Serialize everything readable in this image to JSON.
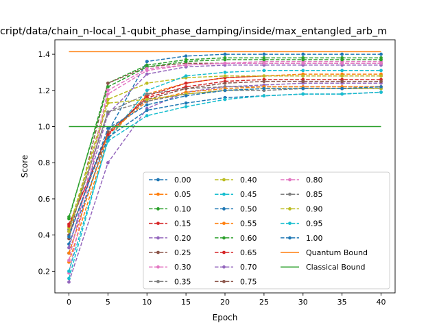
{
  "chart_data": {
    "type": "line",
    "title": "cript/data/chain_n-local_1-qubit_phase_damping/inside/max_entangled_arb_m",
    "xlabel": "Epoch",
    "ylabel": "Score",
    "xlim": [
      -1.8,
      41.8
    ],
    "ylim": [
      0.08,
      1.48
    ],
    "xticks": [
      0,
      5,
      10,
      15,
      20,
      25,
      30,
      35,
      40
    ],
    "yticks": [
      0.2,
      0.4,
      0.6,
      0.8,
      1.0,
      1.2,
      1.4
    ],
    "xtick_labels": [
      "0",
      "5",
      "10",
      "15",
      "20",
      "25",
      "30",
      "35",
      "40"
    ],
    "ytick_labels": [
      "0.2",
      "0.4",
      "0.6",
      "0.8",
      "1.0",
      "1.2",
      "1.4"
    ],
    "grid": false,
    "legend_position": "lower-right",
    "legend_columns": 3,
    "x": [
      0,
      5,
      10,
      15,
      20,
      25,
      30,
      35,
      40
    ],
    "series": [
      {
        "name": "0.00",
        "color": "#1f77b4",
        "style": "dashed-dot",
        "values": [
          0.3,
          0.97,
          1.36,
          1.39,
          1.4,
          1.4,
          1.4,
          1.4,
          1.4
        ]
      },
      {
        "name": "0.05",
        "color": "#ff7f0e",
        "style": "dashed-dot",
        "values": [
          0.25,
          0.93,
          1.18,
          1.24,
          1.27,
          1.28,
          1.29,
          1.29,
          1.29
        ]
      },
      {
        "name": "0.10",
        "color": "#2ca02c",
        "style": "dashed-dot",
        "values": [
          0.49,
          1.24,
          1.34,
          1.37,
          1.38,
          1.38,
          1.38,
          1.38,
          1.38
        ]
      },
      {
        "name": "0.15",
        "color": "#d62728",
        "style": "dashed-dot",
        "values": [
          0.46,
          0.95,
          1.17,
          1.24,
          1.27,
          1.28,
          1.28,
          1.28,
          1.28
        ]
      },
      {
        "name": "0.20",
        "color": "#9467bd",
        "style": "dashed-dot",
        "values": [
          0.14,
          0.8,
          1.1,
          1.19,
          1.22,
          1.23,
          1.24,
          1.24,
          1.24
        ]
      },
      {
        "name": "0.25",
        "color": "#8c564b",
        "style": "dashed-dot",
        "values": [
          0.38,
          1.24,
          1.33,
          1.35,
          1.35,
          1.35,
          1.35,
          1.35,
          1.35
        ]
      },
      {
        "name": "0.30",
        "color": "#e377c2",
        "style": "dashed-dot",
        "values": [
          0.19,
          1.18,
          1.31,
          1.34,
          1.35,
          1.36,
          1.36,
          1.36,
          1.36
        ]
      },
      {
        "name": "0.35",
        "color": "#7f7f7f",
        "style": "dashed-dot",
        "values": [
          0.43,
          1.08,
          1.18,
          1.21,
          1.22,
          1.22,
          1.22,
          1.22,
          1.22
        ]
      },
      {
        "name": "0.40",
        "color": "#bcbd22",
        "style": "dashed-dot",
        "values": [
          0.44,
          1.15,
          1.24,
          1.27,
          1.28,
          1.28,
          1.28,
          1.28,
          1.28
        ]
      },
      {
        "name": "0.45",
        "color": "#17becf",
        "style": "dashed-dot",
        "values": [
          0.16,
          0.93,
          1.2,
          1.28,
          1.3,
          1.31,
          1.31,
          1.31,
          1.31
        ]
      },
      {
        "name": "0.50",
        "color": "#1f77b4",
        "style": "dashed-dot",
        "values": [
          0.35,
          0.94,
          1.09,
          1.13,
          1.16,
          1.17,
          1.18,
          1.18,
          1.19
        ]
      },
      {
        "name": "0.55",
        "color": "#ff7f0e",
        "style": "dashed-dot",
        "values": [
          0.3,
          0.96,
          1.14,
          1.19,
          1.21,
          1.22,
          1.22,
          1.22,
          1.22
        ]
      },
      {
        "name": "0.60",
        "color": "#2ca02c",
        "style": "dashed-dot",
        "values": [
          0.5,
          1.22,
          1.33,
          1.36,
          1.37,
          1.37,
          1.37,
          1.37,
          1.37
        ]
      },
      {
        "name": "0.65",
        "color": "#d62728",
        "style": "dashed-dot",
        "values": [
          0.45,
          0.96,
          1.16,
          1.22,
          1.25,
          1.26,
          1.26,
          1.26,
          1.26
        ]
      },
      {
        "name": "0.70",
        "color": "#9467bd",
        "style": "dashed-dot",
        "values": [
          0.33,
          1.07,
          1.29,
          1.33,
          1.34,
          1.34,
          1.34,
          1.34,
          1.34
        ]
      },
      {
        "name": "0.75",
        "color": "#8c564b",
        "style": "dashed-dot",
        "values": [
          0.4,
          0.97,
          1.15,
          1.21,
          1.24,
          1.25,
          1.25,
          1.25,
          1.25
        ]
      },
      {
        "name": "0.80",
        "color": "#e377c2",
        "style": "dashed-dot",
        "values": [
          0.26,
          1.2,
          1.32,
          1.34,
          1.35,
          1.35,
          1.35,
          1.35,
          1.35
        ]
      },
      {
        "name": "0.85",
        "color": "#7f7f7f",
        "style": "dashed-dot",
        "values": [
          0.42,
          1.08,
          1.14,
          1.18,
          1.2,
          1.2,
          1.21,
          1.21,
          1.21
        ]
      },
      {
        "name": "0.90",
        "color": "#bcbd22",
        "style": "dashed-dot",
        "values": [
          0.42,
          1.13,
          1.15,
          1.18,
          1.2,
          1.21,
          1.21,
          1.21,
          1.21
        ]
      },
      {
        "name": "0.95",
        "color": "#17becf",
        "style": "dashed-dot",
        "values": [
          0.2,
          0.92,
          1.06,
          1.11,
          1.15,
          1.17,
          1.18,
          1.18,
          1.19
        ]
      },
      {
        "name": "1.00",
        "color": "#1f77b4",
        "style": "dashed-dot",
        "values": [
          0.39,
          0.99,
          1.12,
          1.17,
          1.2,
          1.21,
          1.21,
          1.21,
          1.22
        ]
      },
      {
        "name": "Quantum Bound",
        "color": "#ff7f0e",
        "style": "solid",
        "values": [
          1.414,
          1.414,
          1.414,
          1.414,
          1.414,
          1.414,
          1.414,
          1.414,
          1.414
        ]
      },
      {
        "name": "Classical Bound",
        "color": "#2ca02c",
        "style": "solid",
        "values": [
          1.0,
          1.0,
          1.0,
          1.0,
          1.0,
          1.0,
          1.0,
          1.0,
          1.0
        ]
      }
    ]
  }
}
